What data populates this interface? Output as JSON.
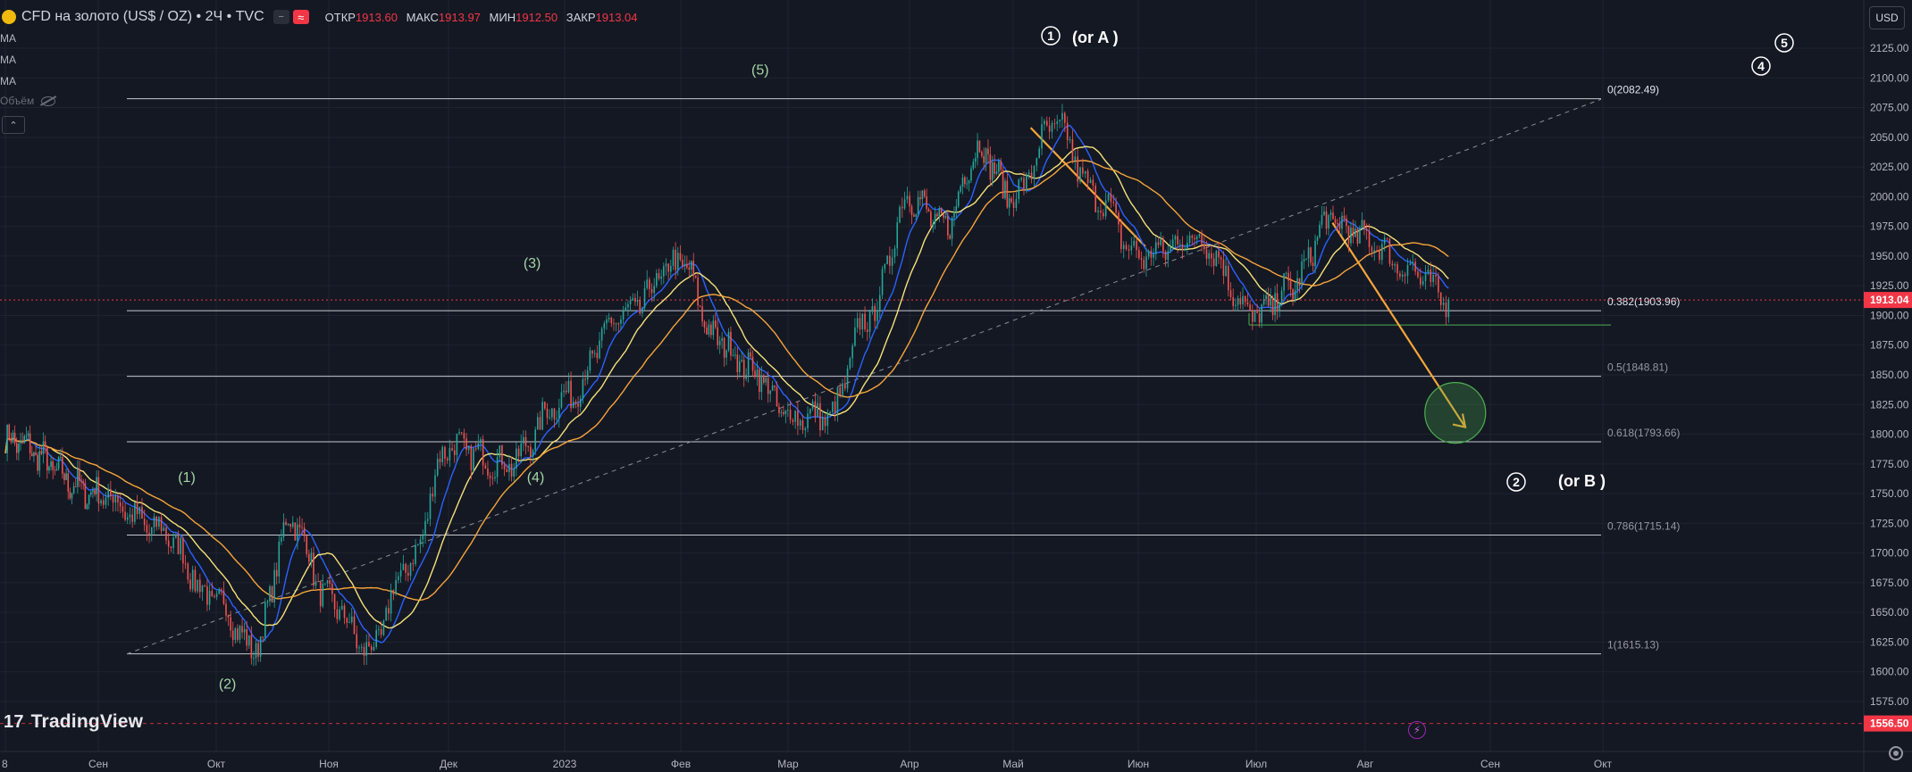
{
  "header": {
    "title": "CFD на золото (US$ / OZ) • 2Ч • TVC",
    "ohlc": [
      {
        "label": "ОТКР",
        "value": "1913.60"
      },
      {
        "label": "МАКС",
        "value": "1913.97"
      },
      {
        "label": "МИН",
        "value": "1912.50"
      },
      {
        "label": "ЗАКР",
        "value": "1913.04"
      }
    ],
    "pill_minus": "−",
    "pill_wave": "≈"
  },
  "indicators": [
    "MA",
    "MA",
    "MA"
  ],
  "volume_label": "Объём",
  "collapse_label": "⌃",
  "currency_button": "USD",
  "brand": {
    "mark": "17",
    "name": "TradingView"
  },
  "colors": {
    "background": "#141823",
    "up": "#26a69a",
    "down": "#ef5350",
    "ma_fast": "#2962ff",
    "ma_mid": "#f5e27a",
    "ma_slow": "#f7a53a",
    "arrow": "#f7a53a",
    "target_circle": "#4caf50",
    "fib_line": "#c7c9cf",
    "last_price": "#f23645"
  },
  "chart_data": {
    "type": "line",
    "instrument": "CFD на золото (US$ / OZ)",
    "timeframe": "2Ч",
    "x_labels": [
      "8",
      "Сен",
      "Окт",
      "Ноя",
      "Дек",
      "2023",
      "Фев",
      "Мар",
      "Апр",
      "Май",
      "Июн",
      "Июл",
      "Авг",
      "Сен",
      "Окт"
    ],
    "y_ticks": [
      1575,
      1600,
      1625,
      1650,
      1675,
      1700,
      1725,
      1750,
      1775,
      1800,
      1825,
      1850,
      1875,
      1900,
      1925,
      1950,
      1975,
      2000,
      2025,
      2050,
      2075,
      2100,
      2125
    ],
    "ylim": [
      1556,
      2135
    ],
    "series": [
      {
        "name": "CFD на золото (US$ / OZ)",
        "x": [
          "8",
          "Сен",
          "Сен",
          "Окт",
          "Окт",
          "Окт",
          "Ноя",
          "Ноя",
          "Ноя",
          "Дек",
          "Дек",
          "2023",
          "2023",
          "Фев",
          "Фев",
          "Фев",
          "Мар",
          "Мар",
          "Мар",
          "Апр",
          "Апр",
          "Апр",
          "Май",
          "Май",
          "Май",
          "Июн",
          "Июн",
          "Июл",
          "Июл",
          "Июл",
          "Авг",
          "Авг",
          "Авг"
        ],
        "values": [
          1795,
          1750,
          1720,
          1660,
          1620,
          1728,
          1660,
          1618,
          1690,
          1790,
          1775,
          1830,
          1900,
          1945,
          1880,
          1855,
          1815,
          1815,
          1900,
          2000,
          1975,
          2040,
          2000,
          2060,
          2000,
          1950,
          1965,
          1900,
          1925,
          1980,
          1965,
          1940,
          1913
        ]
      }
    ],
    "levels": [
      {
        "label": "0(2082.49)",
        "value": 2082.49
      },
      {
        "label": "0.382(1903.96)",
        "value": 1903.96
      },
      {
        "label": "0.5(1848.81)",
        "value": 1848.81
      },
      {
        "label": "0.618(1793.66)",
        "value": 1793.66
      },
      {
        "label": "0.786(1715.14)",
        "value": 1715.14
      },
      {
        "label": "1(1615.13)",
        "value": 1615.13
      }
    ],
    "last_price": "1913.04",
    "low_price_marker": "1556.50",
    "wave_labels": [
      "(1)",
      "(2)",
      "(3)",
      "(4)",
      "(5)"
    ],
    "major_waves": [
      "1",
      "2",
      "4",
      "5"
    ],
    "annotations": [
      "(or A )",
      "(or B )"
    ]
  }
}
